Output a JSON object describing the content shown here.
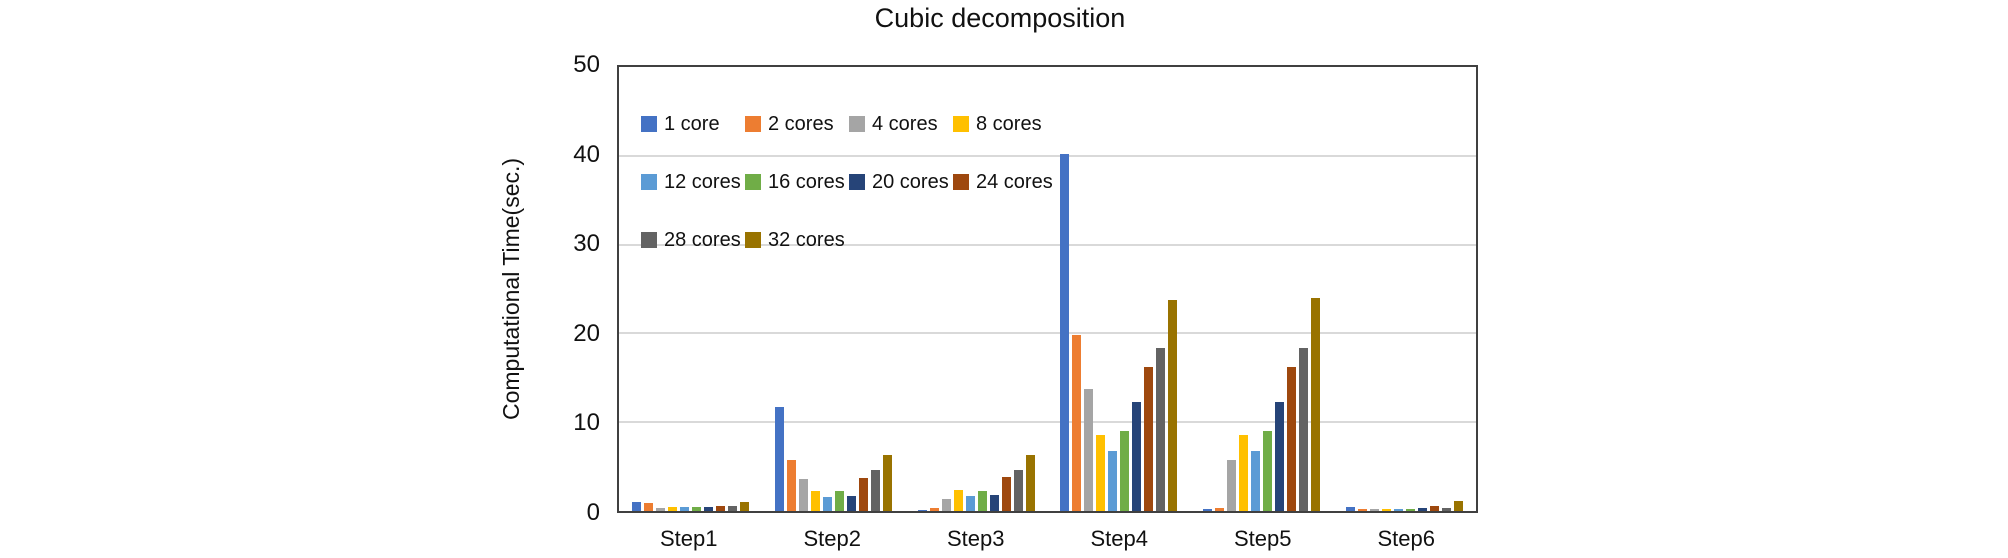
{
  "title": "Cubic decomposition",
  "chart_data": {
    "type": "bar",
    "title": "Cubic decomposition",
    "xlabel": "",
    "ylabel": "Computational Time(sec.)",
    "ylim": [
      0,
      50
    ],
    "yticks": [
      0,
      10,
      20,
      30,
      40,
      50
    ],
    "grid": true,
    "legend_position": "inside-top-left",
    "categories": [
      "Step1",
      "Step2",
      "Step3",
      "Step4",
      "Step5",
      "Step6"
    ],
    "series": [
      {
        "name": "1 core",
        "color": "#4472C4",
        "values": [
          1.0,
          11.7,
          0.1,
          40.2,
          0.2,
          0.45
        ]
      },
      {
        "name": "2 cores",
        "color": "#ED7D31",
        "values": [
          0.85,
          5.8,
          0.3,
          19.8,
          0.35,
          0.25
        ]
      },
      {
        "name": "4 cores",
        "color": "#A5A5A5",
        "values": [
          0.35,
          3.6,
          1.4,
          13.7,
          5.8,
          0.25
        ]
      },
      {
        "name": "8 cores",
        "color": "#FFC000",
        "values": [
          0.4,
          2.3,
          2.4,
          8.6,
          8.6,
          0.25
        ]
      },
      {
        "name": "12 cores",
        "color": "#5B9BD5",
        "values": [
          0.4,
          1.6,
          1.7,
          6.8,
          6.8,
          0.25
        ]
      },
      {
        "name": "16 cores",
        "color": "#70AD47",
        "values": [
          0.4,
          2.2,
          2.2,
          9.0,
          9.0,
          0.2
        ]
      },
      {
        "name": "20 cores",
        "color": "#264478",
        "values": [
          0.45,
          1.7,
          1.8,
          12.3,
          12.3,
          0.3
        ]
      },
      {
        "name": "24 cores",
        "color": "#9E480E",
        "values": [
          0.55,
          3.7,
          3.8,
          16.2,
          16.2,
          0.55
        ]
      },
      {
        "name": "28 cores",
        "color": "#636363",
        "values": [
          0.55,
          4.6,
          4.6,
          18.4,
          18.4,
          0.35
        ]
      },
      {
        "name": "32 cores",
        "color": "#997300",
        "values": [
          1.05,
          6.3,
          6.3,
          23.8,
          24.0,
          1.1
        ]
      }
    ],
    "legend_rows": [
      [
        "1 core",
        "2 cores",
        "4 cores",
        "8 cores"
      ],
      [
        "12 cores",
        "16 cores",
        "20 cores",
        "24 cores"
      ],
      [
        "28 cores",
        "32 cores"
      ]
    ]
  }
}
